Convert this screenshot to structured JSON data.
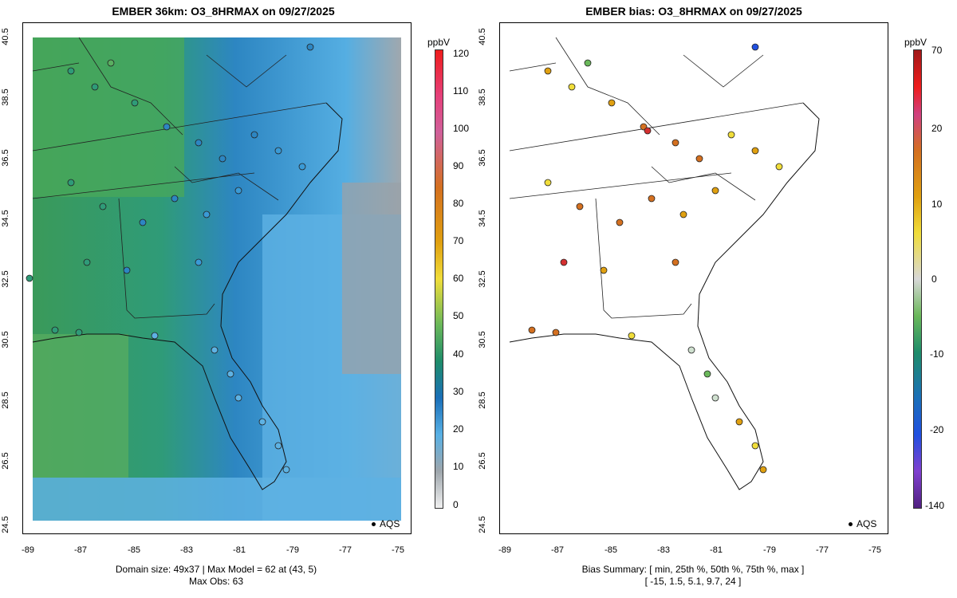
{
  "left_panel": {
    "title": "EMBER 36km: O3_8HRMAX on 09/27/2025",
    "unit": "ppbV",
    "colorbar_ticks": [
      "120",
      "110",
      "100",
      "90",
      "80",
      "70",
      "60",
      "50",
      "40",
      "30",
      "20",
      "10",
      "0"
    ],
    "footer_line1": "Domain size: 49x37 | Max Model = 62 at (43, 5)",
    "footer_line2": "Max Obs: 63",
    "legend": "AQS"
  },
  "right_panel": {
    "title": "EMBER bias: O3_8HRMAX on 09/27/2025",
    "unit": "ppbV",
    "colorbar_ticks": [
      "70",
      "20",
      "10",
      "0",
      "-10",
      "-20",
      "-140"
    ],
    "footer_line1": "Bias Summary: [ min, 25th %, 50th %, 75th %, max ]",
    "footer_line2": "[ -15,   1.5,   5.1,   9.7,   24 ]",
    "legend": "AQS"
  },
  "axes": {
    "x_ticks": [
      "-89",
      "-87",
      "-85",
      "-83",
      "-81",
      "-79",
      "-77",
      "-75"
    ],
    "y_ticks": [
      "40.5",
      "38.5",
      "36.5",
      "34.5",
      "32.5",
      "30.5",
      "28.5",
      "26.5",
      "24.5"
    ]
  },
  "colors": {
    "ocean": "#4aa9e0",
    "land_green": "#3aa86a",
    "land_blue": "#2a84c6",
    "gray": "#9aa2a8"
  }
}
